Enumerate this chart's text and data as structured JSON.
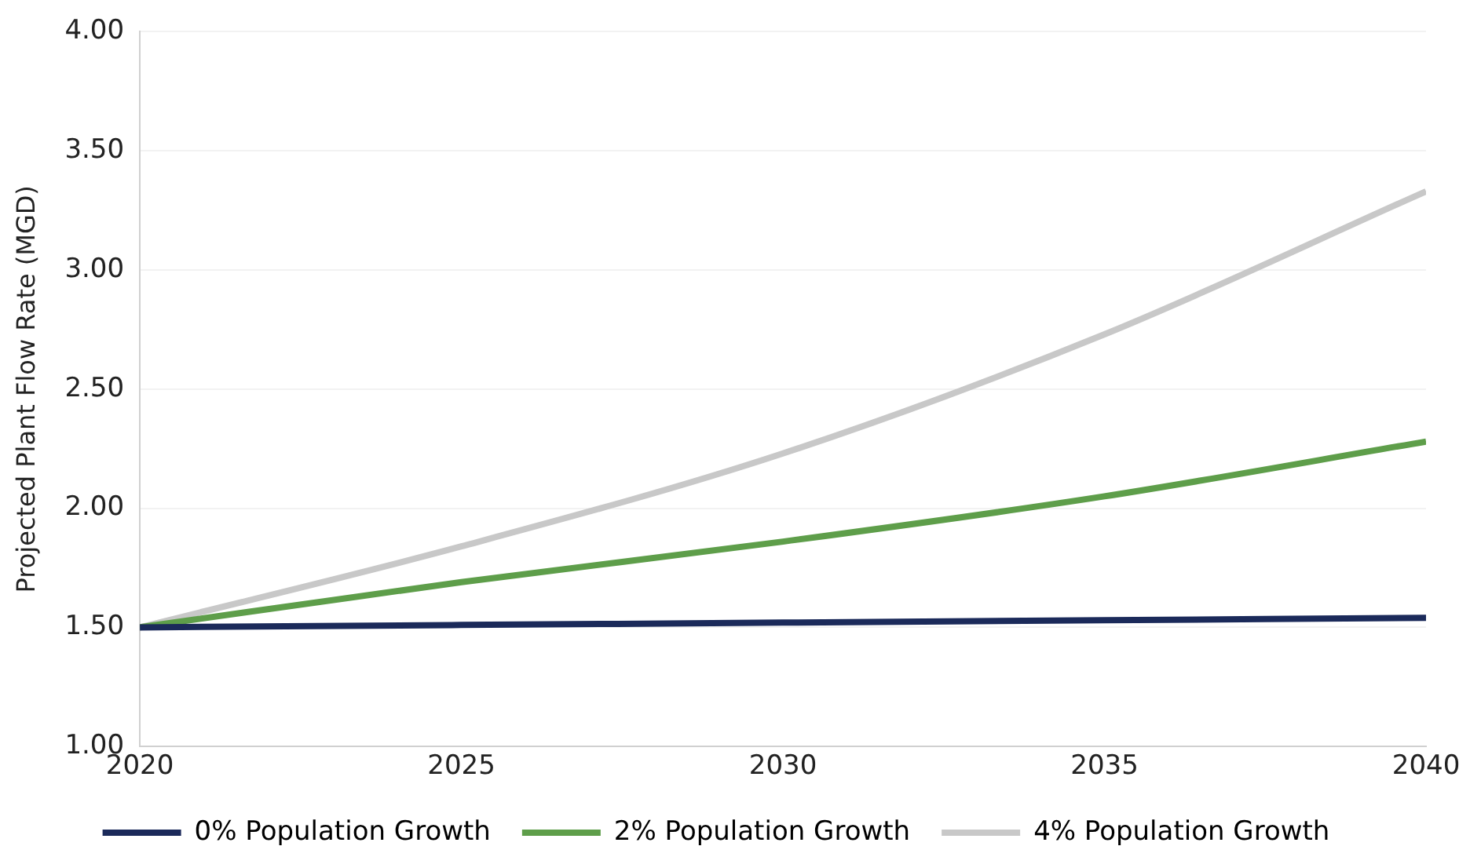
{
  "chart_data": {
    "type": "line",
    "ylabel": "Projected Plant Flow Rate (MGD)",
    "x": [
      2020,
      2025,
      2030,
      2035,
      2040
    ],
    "xlim": [
      2020,
      2040
    ],
    "xticks": [
      2020,
      2025,
      2030,
      2035,
      2040
    ],
    "ylim": [
      1,
      4
    ],
    "yticks": [
      {
        "value": 1,
        "label": "1.00"
      },
      {
        "value": 1.5,
        "label": "1.50"
      },
      {
        "value": 2,
        "label": "2.00"
      },
      {
        "value": 2.5,
        "label": "2.50"
      },
      {
        "value": 3,
        "label": "3.00"
      },
      {
        "value": 3.5,
        "label": "3.50"
      },
      {
        "value": 4,
        "label": "4.00"
      }
    ],
    "series": [
      {
        "name": "0% Population Growth",
        "color": "#1b2a5a",
        "values": [
          1.5,
          1.51,
          1.52,
          1.53,
          1.54
        ]
      },
      {
        "name": "2% Population Growth",
        "color": "#5e9e4a",
        "values": [
          1.5,
          1.69,
          1.86,
          2.05,
          2.28
        ]
      },
      {
        "name": "4% Population Growth",
        "color": "#c8c8c8",
        "values": [
          1.5,
          1.84,
          2.23,
          2.73,
          3.33
        ]
      }
    ],
    "grid": "y",
    "legend": "bottom",
    "marker": "none",
    "line_style": "solid"
  }
}
